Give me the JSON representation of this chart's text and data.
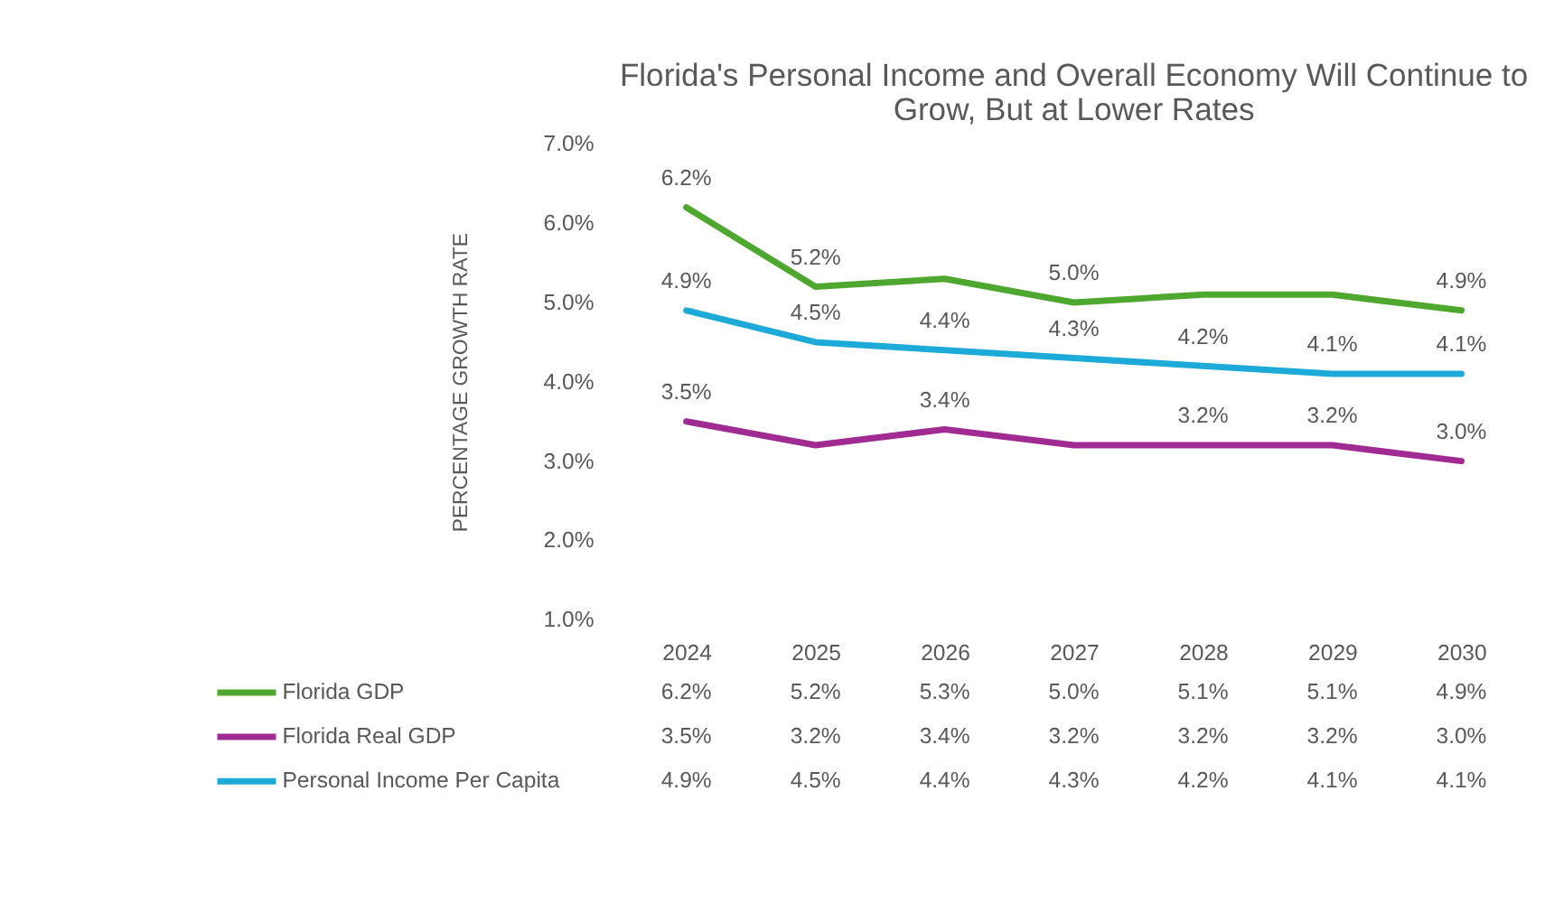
{
  "chart_data": {
    "type": "line",
    "title": "Florida's Personal Income and Overall Economy Will Continue to Grow, But at Lower Rates",
    "ylabel": "PERCENTAGE GROWTH RATE",
    "categories": [
      "2024",
      "2025",
      "2026",
      "2027",
      "2028",
      "2029",
      "2030"
    ],
    "ylim": [
      1,
      7
    ],
    "yticks": [
      {
        "value": 1,
        "label": "1.0%"
      },
      {
        "value": 2,
        "label": "2.0%"
      },
      {
        "value": 3,
        "label": "3.0%"
      },
      {
        "value": 4,
        "label": "4.0%"
      },
      {
        "value": 5,
        "label": "5.0%"
      },
      {
        "value": 6,
        "label": "6.0%"
      },
      {
        "value": 7,
        "label": "7.0%"
      }
    ],
    "grid": false,
    "legend": "bottom",
    "line_style": "solid",
    "series": [
      {
        "name": "Florida GDP",
        "color": "#4ea72e",
        "values": [
          6.2,
          5.2,
          5.3,
          5.0,
          5.1,
          5.1,
          4.9
        ],
        "value_labels": [
          "6.2%",
          "5.2%",
          "5.3%",
          "5.0%",
          "5.1%",
          "5.1%",
          "4.9%"
        ]
      },
      {
        "name": "Florida Real GDP",
        "color": "#a02b93",
        "values": [
          3.5,
          3.2,
          3.4,
          3.2,
          3.2,
          3.2,
          3.0
        ],
        "value_labels": [
          "3.5%",
          "3.2%",
          "3.4%",
          "3.2%",
          "3.2%",
          "3.2%",
          "3.0%"
        ]
      },
      {
        "name": "Personal Income Per Capita",
        "color": "#1eaad8",
        "values": [
          4.9,
          4.5,
          4.4,
          4.3,
          4.2,
          4.1,
          4.1
        ],
        "value_labels": [
          "4.9%",
          "4.5%",
          "4.4%",
          "4.3%",
          "4.2%",
          "4.1%",
          "4.1%"
        ]
      }
    ],
    "annotations": [
      {
        "text": "6.2%",
        "x": "2024",
        "y": 6.2
      },
      {
        "text": "5.2%",
        "x": "2025",
        "y": 5.2
      },
      {
        "text": "5.0%",
        "x": "2027",
        "y": 5.0
      },
      {
        "text": "4.9%",
        "x": "2030",
        "y": 4.9
      },
      {
        "text": "4.9%",
        "x": "2024",
        "y": 4.9
      },
      {
        "text": "4.5%",
        "x": "2025",
        "y": 4.5
      },
      {
        "text": "4.4%",
        "x": "2026",
        "y": 4.4
      },
      {
        "text": "4.3%",
        "x": "2027",
        "y": 4.3
      },
      {
        "text": "4.2%",
        "x": "2028",
        "y": 4.2
      },
      {
        "text": "4.1%",
        "x": "2029",
        "y": 4.1
      },
      {
        "text": "4.1%",
        "x": "2030",
        "y": 4.1
      },
      {
        "text": "3.5%",
        "x": "2024",
        "y": 3.5
      },
      {
        "text": "3.4%",
        "x": "2026",
        "y": 3.4
      },
      {
        "text": "3.2%",
        "x": "2028",
        "y": 3.2
      },
      {
        "text": "3.2%",
        "x": "2029",
        "y": 3.2
      },
      {
        "text": "3.0%",
        "x": "2030",
        "y": 3.0
      }
    ]
  }
}
